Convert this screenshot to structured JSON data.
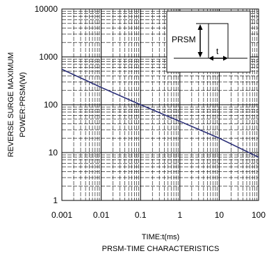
{
  "chart_data": {
    "type": "line",
    "title": "PRSM-TIME CHARACTERISTICS",
    "xlabel": "TIME:t(ms)",
    "ylabel_lines": [
      "REVERSE   SURGE MAXIMUM",
      "POWER:PRSM(W)"
    ],
    "x_scale": "log",
    "y_scale": "log",
    "xlim": [
      0.001,
      100
    ],
    "ylim": [
      1,
      10000
    ],
    "x_ticks": [
      "0.001",
      "0.01",
      "0.1",
      "1",
      "10",
      "100"
    ],
    "y_ticks": [
      "1",
      "10",
      "100",
      "1000",
      "10000"
    ],
    "grid": true,
    "series": [
      {
        "color": "#2b2f78",
        "x": [
          0.001,
          0.01,
          0.1,
          1,
          10,
          100
        ],
        "y": [
          550,
          230,
          100,
          45,
          20,
          8
        ]
      }
    ],
    "inset": {
      "label": "PRSM",
      "t_label": "t"
    }
  }
}
